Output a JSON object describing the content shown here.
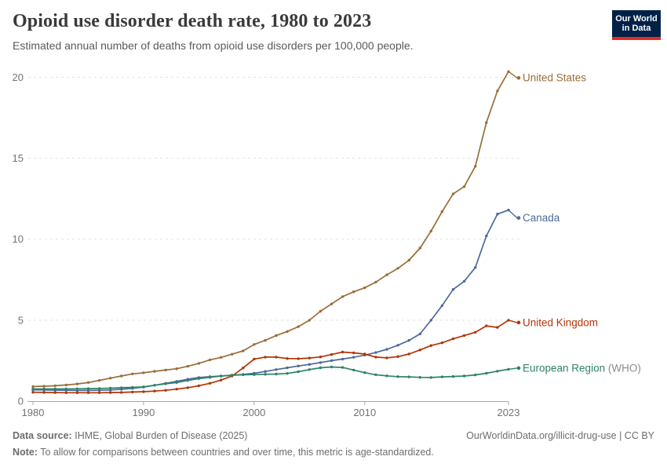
{
  "header": {
    "title": "Opioid use disorder death rate, 1980 to 2023",
    "subtitle": "Estimated annual number of deaths from opioid use disorders per 100,000 people.",
    "logo_line1": "Our World",
    "logo_line2": "in Data"
  },
  "footer": {
    "source_label": "Data source:",
    "source_text": "IHME, Global Burden of Disease (2025)",
    "note_label": "Note:",
    "note_text": "To allow for comparisons between countries and over time, this metric is age-standardized.",
    "link_text": "OurWorldinData.org/illicit-drug-use | CC BY"
  },
  "colors": {
    "grid": "#e3e3e3",
    "axis": "#a8a8a8",
    "tick_label": "#737373",
    "label_suffix": "#8b8b8b"
  },
  "chart_data": {
    "type": "line",
    "title": "Opioid use disorder death rate, 1980 to 2023",
    "ylabel": "",
    "xlabel": "",
    "xlim": [
      1980,
      2023
    ],
    "ylim": [
      0,
      21
    ],
    "x_ticks": [
      1980,
      1990,
      2000,
      2010,
      2023
    ],
    "y_ticks": [
      0,
      5,
      10,
      15,
      20
    ],
    "grid": "dashed-horizontal",
    "legend_position": "end-of-line-labels",
    "years": [
      1980,
      1981,
      1982,
      1983,
      1984,
      1985,
      1986,
      1987,
      1988,
      1989,
      1990,
      1991,
      1992,
      1993,
      1994,
      1995,
      1996,
      1997,
      1998,
      1999,
      2000,
      2001,
      2002,
      2003,
      2004,
      2005,
      2006,
      2007,
      2008,
      2009,
      2010,
      2011,
      2012,
      2013,
      2014,
      2015,
      2016,
      2017,
      2018,
      2019,
      2020,
      2021,
      2022,
      2023
    ],
    "series": [
      {
        "id": "united-states",
        "label": "United States",
        "label_suffix": "",
        "color": "#996D39",
        "label_dy": 8,
        "values": [
          0.9,
          0.92,
          0.95,
          1.0,
          1.06,
          1.15,
          1.28,
          1.42,
          1.55,
          1.68,
          1.75,
          1.84,
          1.92,
          2.0,
          2.15,
          2.33,
          2.55,
          2.7,
          2.9,
          3.1,
          3.5,
          3.75,
          4.05,
          4.3,
          4.6,
          5.0,
          5.55,
          6.0,
          6.45,
          6.75,
          7.0,
          7.35,
          7.8,
          8.2,
          8.7,
          9.45,
          10.5,
          11.7,
          12.8,
          13.25,
          14.5,
          17.2,
          19.15,
          20.35
        ]
      },
      {
        "id": "canada",
        "label": "Canada",
        "label_suffix": "",
        "color": "#4C6A9C",
        "label_dy": 10,
        "values": [
          0.7,
          0.69,
          0.68,
          0.67,
          0.66,
          0.66,
          0.67,
          0.69,
          0.73,
          0.79,
          0.87,
          0.98,
          1.1,
          1.22,
          1.35,
          1.46,
          1.51,
          1.55,
          1.6,
          1.65,
          1.72,
          1.83,
          1.95,
          2.06,
          2.17,
          2.27,
          2.38,
          2.5,
          2.6,
          2.71,
          2.84,
          3.0,
          3.2,
          3.45,
          3.75,
          4.15,
          5.0,
          5.9,
          6.9,
          7.4,
          8.25,
          10.2,
          11.55,
          11.8
        ]
      },
      {
        "id": "united-kingdom",
        "label": "United Kingdom",
        "label_suffix": "",
        "color": "#B13507",
        "label_dy": 3,
        "values": [
          0.55,
          0.54,
          0.53,
          0.52,
          0.52,
          0.52,
          0.52,
          0.53,
          0.54,
          0.56,
          0.58,
          0.62,
          0.67,
          0.74,
          0.83,
          0.95,
          1.1,
          1.3,
          1.55,
          2.05,
          2.6,
          2.72,
          2.72,
          2.63,
          2.62,
          2.66,
          2.73,
          2.88,
          3.03,
          2.98,
          2.91,
          2.72,
          2.67,
          2.75,
          2.91,
          3.16,
          3.43,
          3.6,
          3.85,
          4.05,
          4.25,
          4.65,
          4.55,
          5.0
        ]
      },
      {
        "id": "european-region-who",
        "label": "European Region",
        "label_suffix": " (WHO)",
        "color": "#2C8465",
        "label_dy": -1.5,
        "values": [
          0.75,
          0.75,
          0.75,
          0.75,
          0.76,
          0.77,
          0.78,
          0.8,
          0.83,
          0.85,
          0.88,
          0.98,
          1.07,
          1.15,
          1.28,
          1.39,
          1.47,
          1.55,
          1.6,
          1.63,
          1.64,
          1.66,
          1.67,
          1.71,
          1.82,
          1.95,
          2.06,
          2.11,
          2.08,
          1.92,
          1.76,
          1.63,
          1.56,
          1.51,
          1.5,
          1.47,
          1.46,
          1.5,
          1.52,
          1.55,
          1.62,
          1.72,
          1.85,
          1.97
        ]
      }
    ]
  }
}
